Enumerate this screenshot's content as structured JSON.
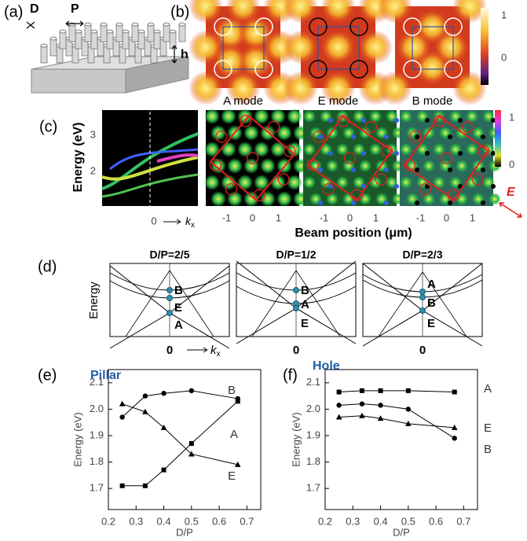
{
  "panel_a": {
    "label": "(a)",
    "D": "D",
    "P": "P",
    "h": "h"
  },
  "panel_b": {
    "label": "(b)",
    "modes": [
      "A mode",
      "E mode",
      "B mode"
    ],
    "colorbar_ticks": [
      "1",
      "0"
    ]
  },
  "panel_c": {
    "label": "(c)",
    "ylabel": "Energy (eV)",
    "yticks": [
      "3",
      "2"
    ],
    "k_origin": "0",
    "k_symbol": "k",
    "k_subscript": "x",
    "xlabel": "Beam position (μm)",
    "xticks": [
      "-1",
      "0",
      "1"
    ],
    "colorbar_ticks": [
      "1",
      "0"
    ],
    "field": "E"
  },
  "panel_d": {
    "label": "(d)",
    "ylabel": "Energy",
    "k_symbol": "k",
    "k_subscript": "x",
    "panels": [
      {
        "title": "D/P=2/5",
        "x_label": "0",
        "modes": [
          "B",
          "E",
          "A"
        ]
      },
      {
        "title": "D/P=1/2",
        "x_label": "0",
        "modes": [
          "B",
          "A",
          "E"
        ]
      },
      {
        "title": "D/P=2/3",
        "x_label": "0",
        "modes": [
          "A",
          "B",
          "E"
        ]
      }
    ]
  },
  "chart_data": [
    {
      "type": "line",
      "panel_label": "(e)",
      "title": "Pillar",
      "xlabel": "D/P",
      "ylabel": "Energy (eV)",
      "x": [
        0.25,
        0.333,
        0.4,
        0.5,
        0.667
      ],
      "series": [
        {
          "name": "B",
          "color": "#000000",
          "marker": "circle",
          "values": [
            1.97,
            2.05,
            2.06,
            2.07,
            2.04
          ]
        },
        {
          "name": "A",
          "color": "#000000",
          "marker": "square",
          "values": [
            1.71,
            1.71,
            1.77,
            1.87,
            2.03
          ]
        },
        {
          "name": "E",
          "color": "#000000",
          "marker": "triangle",
          "values": [
            2.02,
            1.99,
            1.93,
            1.83,
            1.79
          ]
        }
      ],
      "xlim": [
        0.2,
        0.75
      ],
      "ylim": [
        1.62,
        2.15
      ],
      "xticks": [
        0.2,
        0.3,
        0.4,
        0.5,
        0.6,
        0.7
      ],
      "yticks": [
        1.7,
        1.8,
        1.9,
        {
          "value": 2,
          "label": "2.0"
        },
        2.1
      ]
    },
    {
      "type": "line",
      "panel_label": "(f)",
      "title": "Hole",
      "xlabel": "D/P",
      "ylabel": "Energy (eV)",
      "x": [
        0.25,
        0.333,
        0.4,
        0.5,
        0.667
      ],
      "series": [
        {
          "name": "A",
          "color": "#000000",
          "marker": "square",
          "values": [
            2.065,
            2.07,
            2.07,
            2.07,
            2.065
          ]
        },
        {
          "name": "E",
          "color": "#000000",
          "marker": "triangle",
          "values": [
            1.97,
            1.975,
            1.965,
            1.945,
            1.93
          ]
        },
        {
          "name": "B",
          "color": "#000000",
          "marker": "circle",
          "values": [
            2.015,
            2.02,
            2.015,
            2.0,
            1.89
          ]
        }
      ],
      "xlim": [
        0.2,
        0.75
      ],
      "ylim": [
        1.62,
        2.15
      ],
      "xticks": [
        0.2,
        0.3,
        0.4,
        0.5,
        0.6,
        0.7
      ],
      "yticks": [
        1.7,
        1.8,
        1.9,
        {
          "value": 2,
          "label": "2.0"
        },
        2.1
      ]
    }
  ]
}
